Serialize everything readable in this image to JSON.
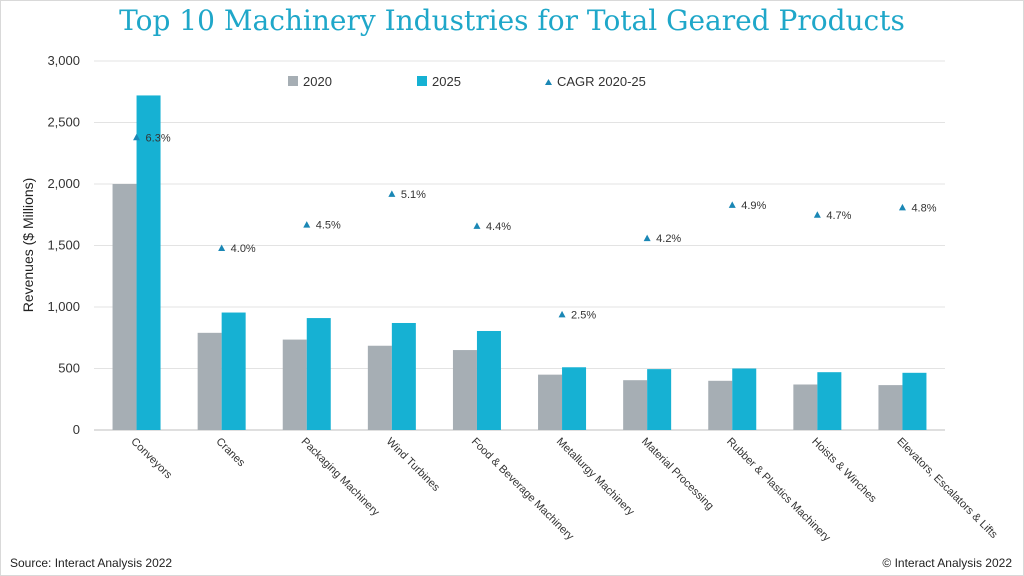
{
  "chart_data": {
    "type": "bar",
    "title": "Top 10 Machinery Industries for Total Geared Products",
    "ylabel": "Revenues ($ Millions)",
    "xlabel": "",
    "ylim": [
      0,
      3000
    ],
    "yticks": [
      0,
      500,
      1000,
      1500,
      2000,
      2500,
      3000
    ],
    "ytick_labels": [
      "0",
      "500",
      "1,000",
      "1,500",
      "2,000",
      "2,500",
      "3,000"
    ],
    "categories": [
      "Conveyors",
      "Cranes",
      "Packaging Machinery",
      "Wind Turbines",
      "Food & Beverage Machinery",
      "Metallurgy Machinery",
      "Material Processing",
      "Rubber & Plastics Machinery",
      "Hoists & Winches",
      "Elevators, Escalators & Lifts"
    ],
    "series": [
      {
        "name": "2020",
        "color": "#a6aeb4",
        "values": [
          2000,
          790,
          735,
          685,
          650,
          450,
          405,
          400,
          370,
          365
        ]
      },
      {
        "name": "2025",
        "color": "#16b1d3",
        "values": [
          2720,
          955,
          910,
          870,
          805,
          510,
          495,
          500,
          470,
          465
        ]
      }
    ],
    "cagr": {
      "name": "CAGR 2020-25",
      "color": "#1a87b5",
      "marker_values": [
        2380,
        1480,
        1670,
        1920,
        1660,
        940,
        1560,
        1830,
        1750,
        1810
      ],
      "labels": [
        "6.3%",
        "4.0%",
        "4.5%",
        "5.1%",
        "4.4%",
        "2.5%",
        "4.2%",
        "4.9%",
        "4.7%",
        "4.8%"
      ]
    },
    "legend": [
      "2020",
      "2025",
      "CAGR 2020-25"
    ],
    "legend_position": "top-center"
  },
  "footer": {
    "source": "Source: Interact Analysis 2022",
    "copyright": "© Interact Analysis 2022"
  }
}
